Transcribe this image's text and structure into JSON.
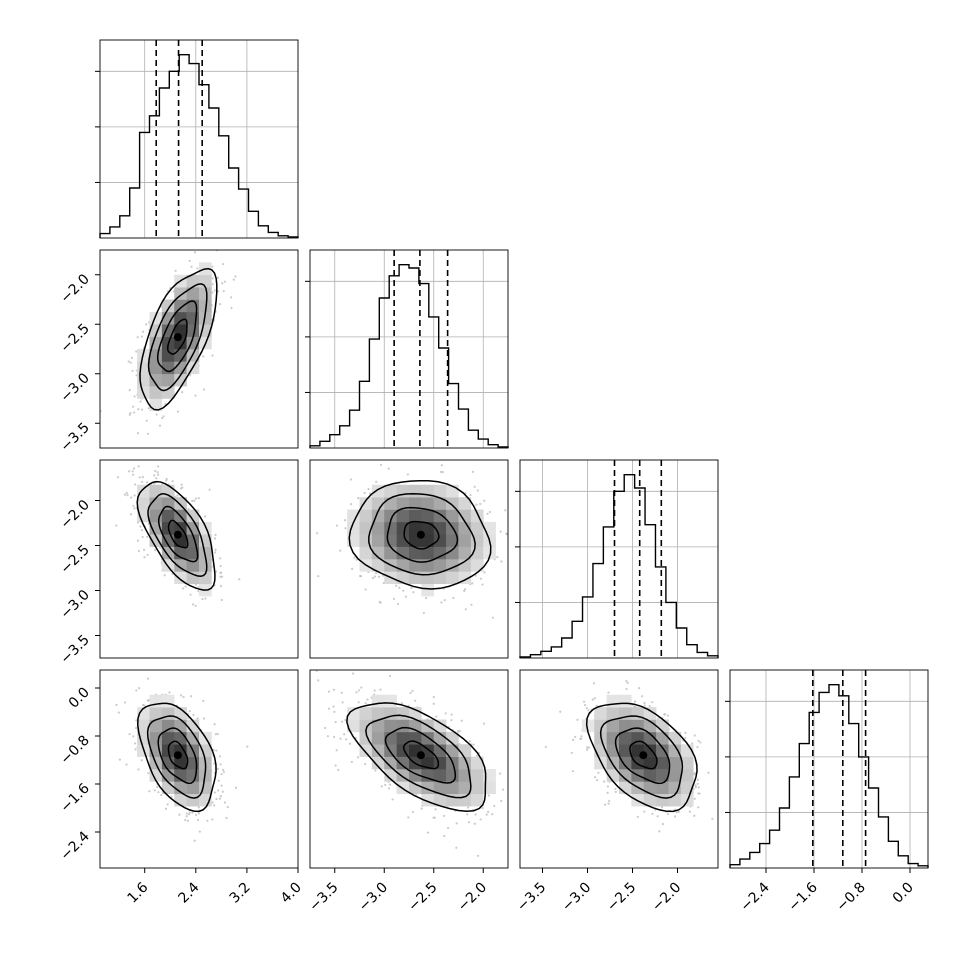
{
  "chart_data": {
    "type": "corner",
    "title": "",
    "params": [
      {
        "range": [
          0.9,
          4.0
        ],
        "ticks": [
          1.6,
          2.4,
          3.2,
          4.0
        ],
        "tick_labels": [
          "1.6",
          "2.4",
          "3.2",
          "4.0"
        ],
        "quantiles": [
          1.78,
          2.13,
          2.5
        ],
        "hist_max": 0.165,
        "hist_bins": [
          0.004,
          0.01,
          0.02,
          0.045,
          0.095,
          0.11,
          0.135,
          0.15,
          0.165,
          0.157,
          0.138,
          0.117,
          0.092,
          0.063,
          0.044,
          0.024,
          0.011,
          0.005,
          0.002,
          0.001
        ]
      },
      {
        "range": [
          -3.75,
          -1.75
        ],
        "ticks": [
          -3.5,
          -3.0,
          -2.5,
          -2.0
        ],
        "tick_labels": [
          "−3.5",
          "−3.0",
          "−2.5",
          "−2.0"
        ],
        "quantiles": [
          -2.9,
          -2.64,
          -2.36
        ],
        "hist_max": 0.165,
        "hist_bins": [
          0.002,
          0.006,
          0.012,
          0.02,
          0.034,
          0.06,
          0.098,
          0.135,
          0.155,
          0.165,
          0.162,
          0.148,
          0.118,
          0.09,
          0.058,
          0.035,
          0.016,
          0.008,
          0.003,
          0.001
        ]
      },
      {
        "range": [
          -3.75,
          -1.55
        ],
        "ticks": [
          -3.5,
          -3.0,
          -2.5,
          -2.0
        ],
        "tick_labels": [
          "−3.5",
          "−3.0",
          "−2.5",
          "−2.0"
        ],
        "quantiles": [
          -2.7,
          -2.42,
          -2.18
        ],
        "hist_max": 0.165,
        "hist_bins": [
          0.001,
          0.003,
          0.006,
          0.01,
          0.018,
          0.033,
          0.055,
          0.085,
          0.118,
          0.15,
          0.165,
          0.153,
          0.12,
          0.082,
          0.05,
          0.027,
          0.012,
          0.005,
          0.002
        ]
      },
      {
        "range": [
          -3.0,
          0.3
        ],
        "ticks": [
          -2.4,
          -1.6,
          -0.8,
          0.0
        ],
        "tick_labels": [
          "−2.4",
          "−1.6",
          "−0.8",
          "0.0"
        ],
        "quantiles": [
          -1.62,
          -1.12,
          -0.74
        ],
        "hist_max": 0.165,
        "hist_bins": [
          0.003,
          0.008,
          0.014,
          0.022,
          0.034,
          0.054,
          0.082,
          0.112,
          0.14,
          0.158,
          0.165,
          0.155,
          0.13,
          0.1,
          0.072,
          0.046,
          0.024,
          0.011,
          0.004,
          0.002
        ]
      }
    ],
    "pairs": [
      {
        "row": 1,
        "col": 0,
        "center": [
          2.12,
          -2.63
        ],
        "sigma": [
          0.3,
          0.35
        ],
        "rho": 0.62
      },
      {
        "row": 2,
        "col": 0,
        "center": [
          2.12,
          -2.38
        ],
        "sigma": [
          0.3,
          0.3
        ],
        "rho": -0.62
      },
      {
        "row": 2,
        "col": 1,
        "center": [
          -2.63,
          -2.38
        ],
        "sigma": [
          0.35,
          0.3
        ],
        "rho": -0.1
      },
      {
        "row": 3,
        "col": 0,
        "center": [
          2.12,
          -1.12
        ],
        "sigma": [
          0.3,
          0.45
        ],
        "rho": -0.45
      },
      {
        "row": 3,
        "col": 1,
        "center": [
          -2.63,
          -1.12
        ],
        "sigma": [
          0.35,
          0.45
        ],
        "rho": -0.6
      },
      {
        "row": 3,
        "col": 2,
        "center": [
          -2.38,
          -1.12
        ],
        "sigma": [
          0.3,
          0.45
        ],
        "rho": -0.45
      }
    ],
    "contour_levels_sigma": [
      0.5,
      1.0,
      1.5,
      2.0
    ],
    "grid": true,
    "colors": {
      "contour": "#000000",
      "density": "#7f7f7f",
      "points": "#bdbdbd",
      "grid": "#b0b0b0"
    }
  }
}
